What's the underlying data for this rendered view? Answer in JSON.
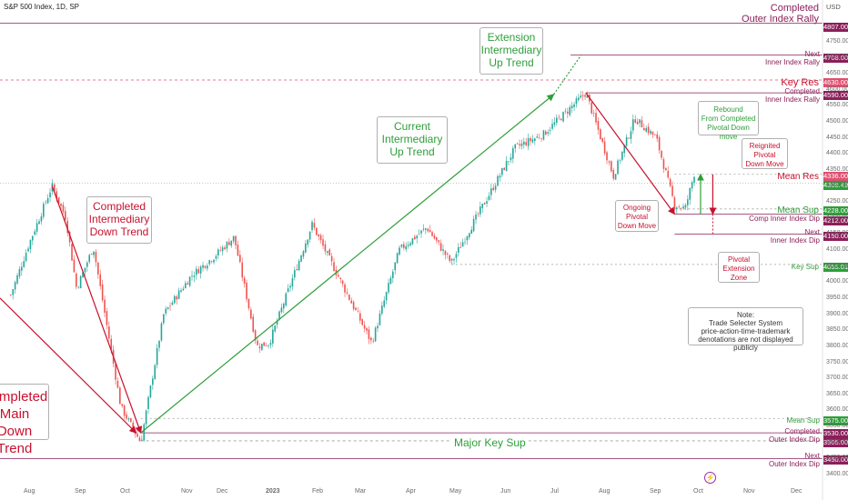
{
  "header": {
    "symbol_title": "S&P 500 Index, 1D, SP",
    "currency": "USD"
  },
  "colors": {
    "green": "#2e9e3a",
    "red": "#c8102e",
    "purple": "#8b1f5a",
    "pink_dotted": "#e05070",
    "grey_dotted": "#9e9e9e",
    "candle_up": "#26a69a",
    "candle_down": "#ef5350"
  },
  "annotations": {
    "completed_outer_rally": [
      "Completed",
      "Outer Index Rally"
    ],
    "extension_uptrend": [
      "Extension",
      "Intermediary",
      "Up Trend"
    ],
    "current_uptrend": [
      "Current",
      "Intermediary",
      "Up Trend"
    ],
    "completed_downtrend": [
      "Completed",
      "Intermediary",
      "Down Trend"
    ],
    "main_downtrend": [
      "Completed",
      "Main",
      "Down Trend"
    ],
    "rebound": [
      "Rebound",
      "From Completed",
      "Pivotal Down move"
    ],
    "reignited": [
      "Reignited",
      "Pivotal",
      "Down Move"
    ],
    "ongoing": [
      "Ongoing",
      "Pivotal",
      "Down Move"
    ],
    "extension_zone": [
      "Pivotal",
      "Extension",
      "Zone"
    ],
    "note": [
      "Note:",
      "Trade Selecter System",
      "price-action-time-trademark",
      "denotations are not displayed publicly"
    ]
  },
  "level_labels": {
    "next_inner_rally": [
      "Next",
      "Inner Index Rally"
    ],
    "key_res": "Key Res",
    "completed_inner_rally": [
      "Completed",
      "Inner Index Rally"
    ],
    "mean_res": "Mean Res",
    "mean_sup": "Mean Sup",
    "comp_inner_dip": "Comp Inner Index Dip",
    "next_inner_dip": [
      "Next",
      "Inner Index Dip"
    ],
    "key_sup": "Key Sup",
    "mean_sup_low": "Mean Sup",
    "completed_outer_dip": [
      "Completed",
      "Outer Index Dip"
    ],
    "major_key_sup": "Major Key Sup",
    "next_outer_dip": [
      "Next",
      "Outer Index Dip"
    ]
  },
  "price_tags": {
    "t4807": "4807.00",
    "t4708": "4708.00",
    "t4630": "4630.00",
    "t4590": "4590.00",
    "t4336": "4336.00",
    "t4308": "4308.49",
    "t4228": "4228.00",
    "t4212": "4212.00",
    "t4150": "4150.00",
    "t4055": "4055.01",
    "t3575": "3575.00",
    "t3530": "3530.00",
    "t3505": "3505.00",
    "t3450": "3450.00"
  },
  "chart_data": {
    "type": "candlestick",
    "title": "S&P 500 Index, 1D, SP",
    "ylabel": "USD",
    "ylim": [
      3400,
      4830
    ],
    "y_ticks": [
      "4750.00",
      "4700.00",
      "4650.00",
      "4600.00",
      "4550.00",
      "4500.00",
      "4450.00",
      "4400.00",
      "4350.00",
      "4300.00",
      "4250.00",
      "4200.00",
      "4150.00",
      "4100.00",
      "4050.00",
      "4000.00",
      "3950.00",
      "3900.00",
      "3850.00",
      "3800.00",
      "3750.00",
      "3700.00",
      "3650.00",
      "3600.00",
      "3550.00",
      "3500.00",
      "3450.00",
      "3400.00"
    ],
    "x_ticks": [
      "Aug",
      "Sep",
      "Oct",
      "Nov",
      "Dec",
      "2023",
      "Feb",
      "Mar",
      "Apr",
      "May",
      "Jun",
      "Jul",
      "Aug",
      "Sep",
      "Oct",
      "Nov",
      "Dec"
    ],
    "price_path": [
      [
        "2022-07-20",
        3960
      ],
      [
        "2022-08-01",
        4120
      ],
      [
        "2022-08-16",
        4300
      ],
      [
        "2022-08-25",
        4200
      ],
      [
        "2022-09-01",
        3980
      ],
      [
        "2022-09-12",
        4110
      ],
      [
        "2022-09-30",
        3610
      ],
      [
        "2022-10-13",
        3500
      ],
      [
        "2022-10-28",
        3900
      ],
      [
        "2022-11-15",
        4020
      ],
      [
        "2022-11-30",
        4080
      ],
      [
        "2022-12-13",
        4140
      ],
      [
        "2022-12-28",
        3800
      ],
      [
        "2023-01-05",
        3810
      ],
      [
        "2023-02-02",
        4180
      ],
      [
        "2023-02-21",
        4000
      ],
      [
        "2023-03-13",
        3810
      ],
      [
        "2023-03-31",
        4100
      ],
      [
        "2023-04-18",
        4170
      ],
      [
        "2023-05-04",
        4060
      ],
      [
        "2023-05-19",
        4190
      ],
      [
        "2023-06-15",
        4420
      ],
      [
        "2023-07-03",
        4460
      ],
      [
        "2023-07-31",
        4590
      ],
      [
        "2023-08-18",
        4330
      ],
      [
        "2023-09-01",
        4510
      ],
      [
        "2023-09-15",
        4450
      ],
      [
        "2023-09-27",
        4240
      ],
      [
        "2023-10-04",
        4230
      ],
      [
        "2023-10-10",
        4340
      ]
    ],
    "levels": [
      {
        "label": "Completed Outer Index Rally",
        "value": 4807.0
      },
      {
        "label": "Next Inner Index Rally",
        "value": 4708.0
      },
      {
        "label": "Key Res",
        "value": 4630.0
      },
      {
        "label": "Completed Inner Index Rally",
        "value": 4590.0
      },
      {
        "label": "Mean Res",
        "value": 4336.0
      },
      {
        "label": "Mean Sup",
        "value": 4228.0
      },
      {
        "label": "Comp Inner Index Dip",
        "value": 4212.0
      },
      {
        "label": "Next Inner Index Dip",
        "value": 4150.0
      },
      {
        "label": "Key Sup",
        "value": 4055.01
      },
      {
        "label": "Mean Sup",
        "value": 3575.0
      },
      {
        "label": "Completed Outer Index Dip",
        "value": 3530.0
      },
      {
        "label": "Major Key Sup",
        "value": 3505.0
      },
      {
        "label": "Next Outer Index Dip",
        "value": 3450.0
      }
    ],
    "last_price": 4308.49,
    "trendlines": [
      {
        "name": "Completed Intermediary Down Trend",
        "from": [
          "2022-08-16",
          4300
        ],
        "to": [
          "2022-10-13",
          3530
        ]
      },
      {
        "name": "Current Intermediary Up Trend",
        "from": [
          "2022-10-13",
          3530
        ],
        "to": [
          "2023-07-10",
          4585
        ]
      },
      {
        "name": "Extension Intermediary Up Trend",
        "from": [
          "2023-07-10",
          4585
        ],
        "to": [
          "2023-07-28",
          4708
        ]
      },
      {
        "name": "Ongoing Pivotal Down Move",
        "from": [
          "2023-07-31",
          4590
        ],
        "to": [
          "2023-09-27",
          4212
        ]
      }
    ]
  }
}
